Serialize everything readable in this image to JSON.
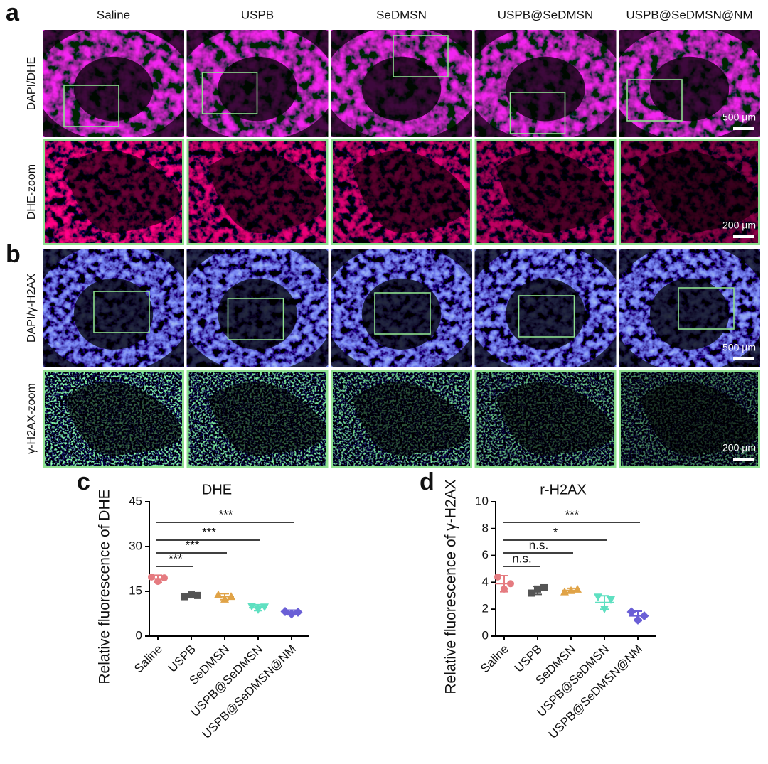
{
  "panel_labels": [
    "a",
    "b",
    "c",
    "d"
  ],
  "columns": [
    "Saline",
    "USPB",
    "SeDMSN",
    "USPB@SeDMSN",
    "USPB@SeDMSN@NM"
  ],
  "rows": [
    "DAPI/DHE",
    "DHE-zoom",
    "DAPI/γ-H2AX",
    "γ-H2AX-zoom"
  ],
  "scale_bars": [
    "500 µm",
    "200 µm",
    "500 µm",
    "200 µm"
  ],
  "chart_data": [
    {
      "type": "scatter",
      "title": "DHE",
      "y_label": "Relative fluorescence of DHE",
      "categories": [
        "Saline",
        "USPB",
        "SeDMSN",
        "USPB@SeDMSN",
        "USPB@SeDMSN@NM"
      ],
      "ylim": [
        0,
        45
      ],
      "yticks": [
        0,
        15,
        30,
        45
      ],
      "series": [
        {
          "color": "#e57b80",
          "marker": "circle",
          "values": [
            19.8,
            18.3,
            19.5
          ],
          "mean": 19.2,
          "sd": 1.2
        },
        {
          "color": "#555555",
          "marker": "square",
          "values": [
            13.2,
            13.8,
            13.6
          ],
          "mean": 13.5,
          "sd": 0.5
        },
        {
          "color": "#e0a347",
          "marker": "triangle-up",
          "values": [
            13.9,
            12.4,
            13.3
          ],
          "mean": 13.2,
          "sd": 1.0
        },
        {
          "color": "#5fe0c1",
          "marker": "triangle-down",
          "values": [
            9.9,
            8.8,
            9.7
          ],
          "mean": 9.5,
          "sd": 1.0
        },
        {
          "color": "#6a5fd6",
          "marker": "diamond",
          "values": [
            8.2,
            7.4,
            8.0
          ],
          "mean": 7.9,
          "sd": 0.8
        }
      ],
      "significance": [
        "***",
        "***",
        "***",
        "***"
      ]
    },
    {
      "type": "scatter",
      "title": "r-H2AX",
      "y_label": "Relative fluorescence of γ-H2AX",
      "categories": [
        "Saline",
        "USPB",
        "SeDMSN",
        "USPB@SeDMSN",
        "USPB@SeDMSN@NM"
      ],
      "ylim": [
        0,
        10
      ],
      "yticks": [
        0,
        2,
        4,
        6,
        8,
        10
      ],
      "series": [
        {
          "color": "#e57b80",
          "marker": "circle",
          "values": [
            4.4,
            3.5,
            3.9
          ],
          "mean": 3.9,
          "sd": 0.6
        },
        {
          "color": "#555555",
          "marker": "square",
          "values": [
            3.2,
            3.5,
            3.6
          ],
          "mean": 3.4,
          "sd": 0.3
        },
        {
          "color": "#e0a347",
          "marker": "triangle-up",
          "values": [
            3.3,
            3.4,
            3.5
          ],
          "mean": 3.4,
          "sd": 0.15
        },
        {
          "color": "#5fe0c1",
          "marker": "triangle-down",
          "values": [
            2.9,
            2.0,
            2.7
          ],
          "mean": 2.5,
          "sd": 0.5
        },
        {
          "color": "#6a5fd6",
          "marker": "diamond",
          "values": [
            1.8,
            1.2,
            1.5
          ],
          "mean": 1.5,
          "sd": 0.35
        }
      ],
      "significance": [
        "n.s.",
        "n.s.",
        "*",
        "***"
      ]
    }
  ]
}
